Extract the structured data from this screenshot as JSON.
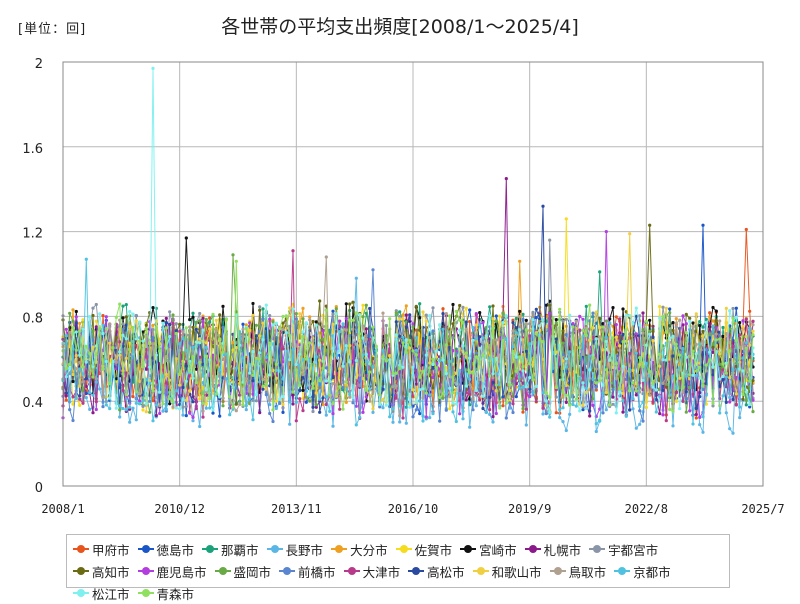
{
  "header": {
    "unit_label": "[単位：回]",
    "title": "各世帯の平均支出頻度[2008/1～2025/4]"
  },
  "chart_data": {
    "type": "line",
    "title": "各世帯の平均支出頻度[2008/1～2025/4]",
    "unit": "回",
    "xlim": [
      "2008/1",
      "2025/7"
    ],
    "ylim": [
      0,
      2
    ],
    "x_ticks": [
      "2008/1",
      "2010/12",
      "2013/11",
      "2016/10",
      "2019/9",
      "2022/8",
      "2025/7"
    ],
    "y_ticks": [
      "0",
      "0.4",
      "0.8",
      "1.2",
      "1.6",
      "2"
    ],
    "grid": true,
    "legend_position": "bottom",
    "series": [
      {
        "name": "甲府市",
        "color": "#e8541c",
        "base": 0.58,
        "peak": {
          "x": "2025/2",
          "y": 1.21
        }
      },
      {
        "name": "徳島市",
        "color": "#1a56c8",
        "base": 0.58,
        "peak": {
          "x": "2024/1",
          "y": 1.23
        }
      },
      {
        "name": "那覇市",
        "color": "#1aa37a",
        "base": 0.62,
        "peak": {
          "x": "2021/6",
          "y": 1.01
        }
      },
      {
        "name": "長野市",
        "color": "#5bb6e6",
        "base": 0.5,
        "peak": {
          "x": "2015/5",
          "y": 0.98
        }
      },
      {
        "name": "大分市",
        "color": "#f0a020",
        "base": 0.6,
        "peak": {
          "x": "2019/6",
          "y": 1.06
        }
      },
      {
        "name": "佐賀市",
        "color": "#f5dc1e",
        "base": 0.6,
        "peak": {
          "x": "2020/8",
          "y": 1.26
        }
      },
      {
        "name": "宮崎市",
        "color": "#111111",
        "base": 0.62,
        "peak": {
          "x": "2011/2",
          "y": 1.17
        }
      },
      {
        "name": "札幌市",
        "color": "#8a1a8a",
        "base": 0.58,
        "peak": {
          "x": "2019/2",
          "y": 1.45
        }
      },
      {
        "name": "宇都宮市",
        "color": "#8a96a8",
        "base": 0.6,
        "peak": {
          "x": "2020/3",
          "y": 1.16
        }
      },
      {
        "name": "高知市",
        "color": "#6b6b14",
        "base": 0.62,
        "peak": {
          "x": "2022/9",
          "y": 1.23
        }
      },
      {
        "name": "鹿児島市",
        "color": "#b23ee0",
        "base": 0.57,
        "peak": {
          "x": "2021/8",
          "y": 1.2
        }
      },
      {
        "name": "盛岡市",
        "color": "#6aaa46",
        "base": 0.6,
        "peak": {
          "x": "2012/4",
          "y": 1.09
        }
      },
      {
        "name": "前橋市",
        "color": "#5a86d0",
        "base": 0.56,
        "peak": {
          "x": "2015/10",
          "y": 1.02
        }
      },
      {
        "name": "大津市",
        "color": "#b83a8a",
        "base": 0.55,
        "peak": {
          "x": "2013/10",
          "y": 1.11
        }
      },
      {
        "name": "高松市",
        "color": "#2a4aa0",
        "base": 0.58,
        "peak": {
          "x": "2020/1",
          "y": 1.32
        }
      },
      {
        "name": "和歌山市",
        "color": "#f0d040",
        "base": 0.6,
        "peak": {
          "x": "2022/3",
          "y": 1.19
        }
      },
      {
        "name": "鳥取市",
        "color": "#b0a090",
        "base": 0.58,
        "peak": {
          "x": "2014/8",
          "y": 1.08
        }
      },
      {
        "name": "京都市",
        "color": "#4fc2e0",
        "base": 0.52,
        "peak": {
          "x": "2008/8",
          "y": 1.07
        }
      },
      {
        "name": "松江市",
        "color": "#7ff0f0",
        "base": 0.6,
        "peak": {
          "x": "2010/4",
          "y": 1.97
        }
      },
      {
        "name": "青森市",
        "color": "#90e060",
        "base": 0.6,
        "peak": {
          "x": "2012/5",
          "y": 1.06
        }
      }
    ]
  }
}
